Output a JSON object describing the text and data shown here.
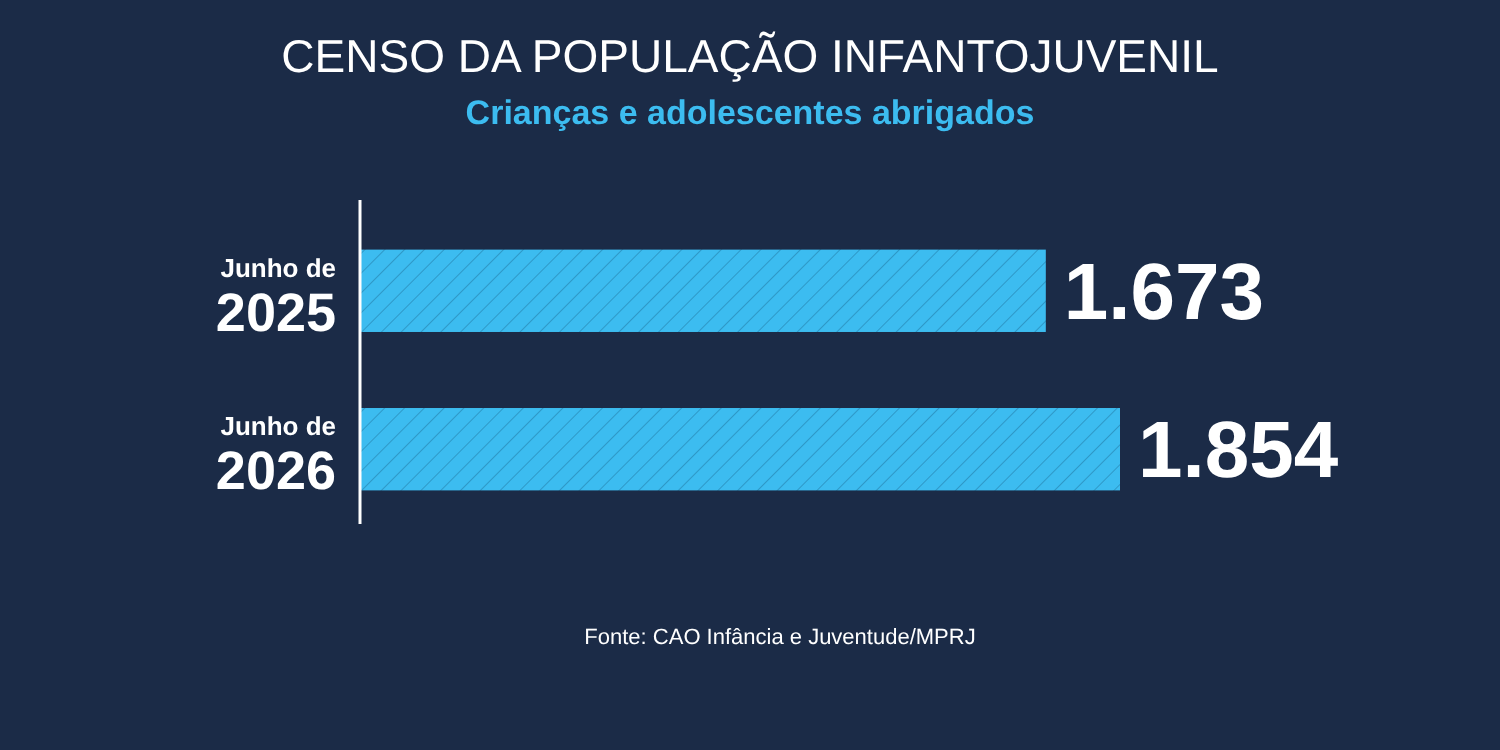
{
  "chart_data": {
    "type": "bar",
    "orientation": "horizontal",
    "title": "CENSO DA POPULAÇÃO INFANTOJUVENIL",
    "subtitle": "Crianças e adolescentes abrigados",
    "categories": [
      "Junho de 2025",
      "Junho de 2026"
    ],
    "values": [
      1673,
      1854
    ],
    "value_labels": [
      "1.673",
      "1.854"
    ],
    "color": "#3cbcf0",
    "annotations": [
      "Fonte: CAO Infância e Juventude/MPRJ"
    ]
  }
}
